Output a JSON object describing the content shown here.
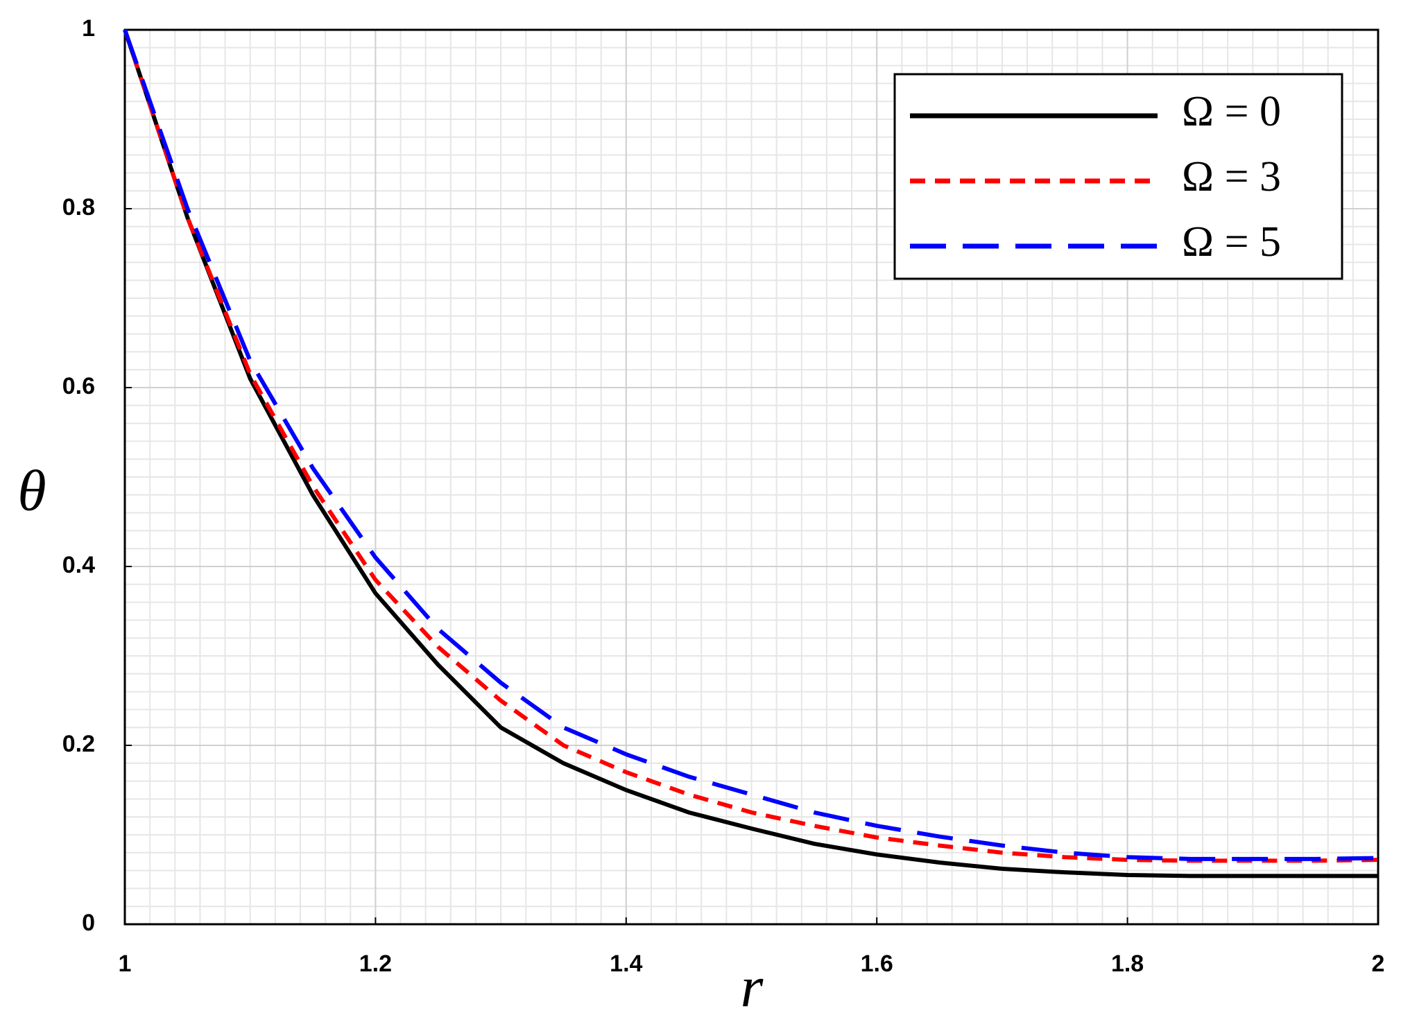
{
  "chart_data": {
    "type": "line",
    "x_label": "r",
    "y_label": "θ",
    "x": [
      1,
      1.05,
      1.1,
      1.15,
      1.2,
      1.25,
      1.3,
      1.35,
      1.4,
      1.45,
      1.5,
      1.55,
      1.6,
      1.65,
      1.7,
      1.75,
      1.8,
      1.85,
      1.9,
      1.95,
      2
    ],
    "series": [
      {
        "name": "Ω = 0",
        "color": "#000000",
        "linestyle": "solid",
        "values": [
          1,
          0.79,
          0.61,
          0.48,
          0.37,
          0.29,
          0.22,
          0.18,
          0.15,
          0.125,
          0.107,
          0.09,
          0.078,
          0.069,
          0.062,
          0.058,
          0.055,
          0.054,
          0.054,
          0.054,
          0.054
        ]
      },
      {
        "name": "Ω = 3",
        "color": "#ff0000",
        "linestyle": "dashed",
        "values": [
          1,
          0.79,
          0.615,
          0.49,
          0.385,
          0.31,
          0.25,
          0.2,
          0.17,
          0.145,
          0.125,
          0.11,
          0.097,
          0.088,
          0.08,
          0.075,
          0.072,
          0.071,
          0.071,
          0.071,
          0.072
        ]
      },
      {
        "name": "Ω = 5",
        "color": "#0000ff",
        "linestyle": "longdash",
        "values": [
          1,
          0.8,
          0.63,
          0.51,
          0.41,
          0.33,
          0.27,
          0.22,
          0.19,
          0.165,
          0.145,
          0.125,
          0.11,
          0.098,
          0.088,
          0.08,
          0.075,
          0.073,
          0.073,
          0.073,
          0.074
        ]
      }
    ],
    "xlim": [
      1,
      2
    ],
    "xticks": [
      1,
      1.2,
      1.4,
      1.6,
      1.8,
      2
    ],
    "ylim": [
      0,
      1
    ],
    "yticks": [
      0,
      0.2,
      0.4,
      0.6,
      0.8,
      1
    ],
    "grid": true,
    "legend": "upper right"
  }
}
